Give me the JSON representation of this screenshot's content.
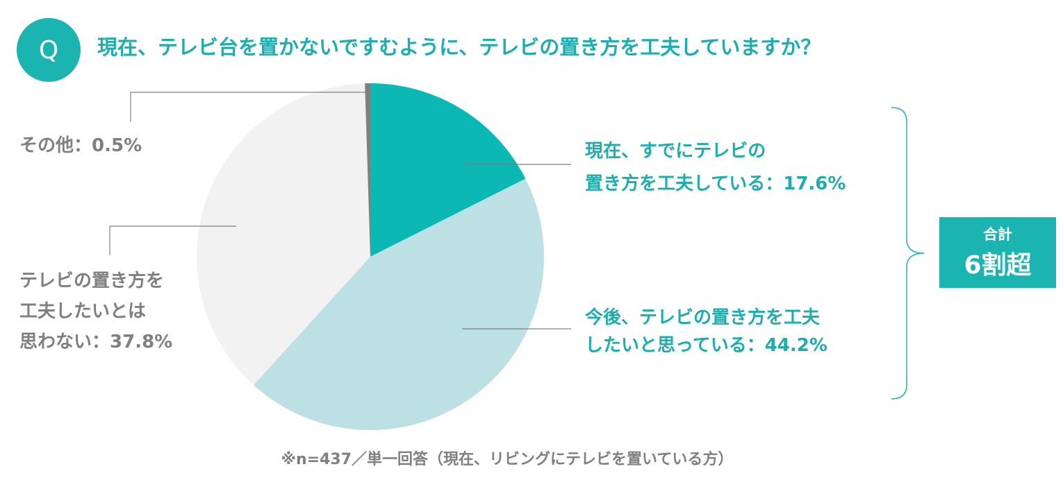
{
  "chart_data": {
    "type": "pie",
    "title": "現在、テレビ台を置かないですむように、テレビの置き方を工夫していますか？",
    "badge": "Q",
    "categories": [
      [
        "現在、すでにテレビの",
        "置き方を工夫している："
      ],
      [
        "今後、テレビの置き方を工夫",
        "したいと思っている："
      ],
      [
        "テレビの置き方を",
        "工夫したいとは",
        "思わない："
      ],
      [
        "その他："
      ]
    ],
    "values": [
      17.6,
      44.2,
      37.8,
      0.5
    ],
    "value_labels": [
      "17.6%",
      "44.2%",
      "37.8%",
      "0.5%"
    ],
    "colors": [
      "#0cb8b3",
      "#bde0e4",
      "#f2f2f2",
      "#7f7f7f"
    ],
    "annotation": {
      "label": "合計",
      "text": "6割超"
    },
    "note": "※n=437／単一回答（現在、リビングにテレビを置いている方）"
  }
}
